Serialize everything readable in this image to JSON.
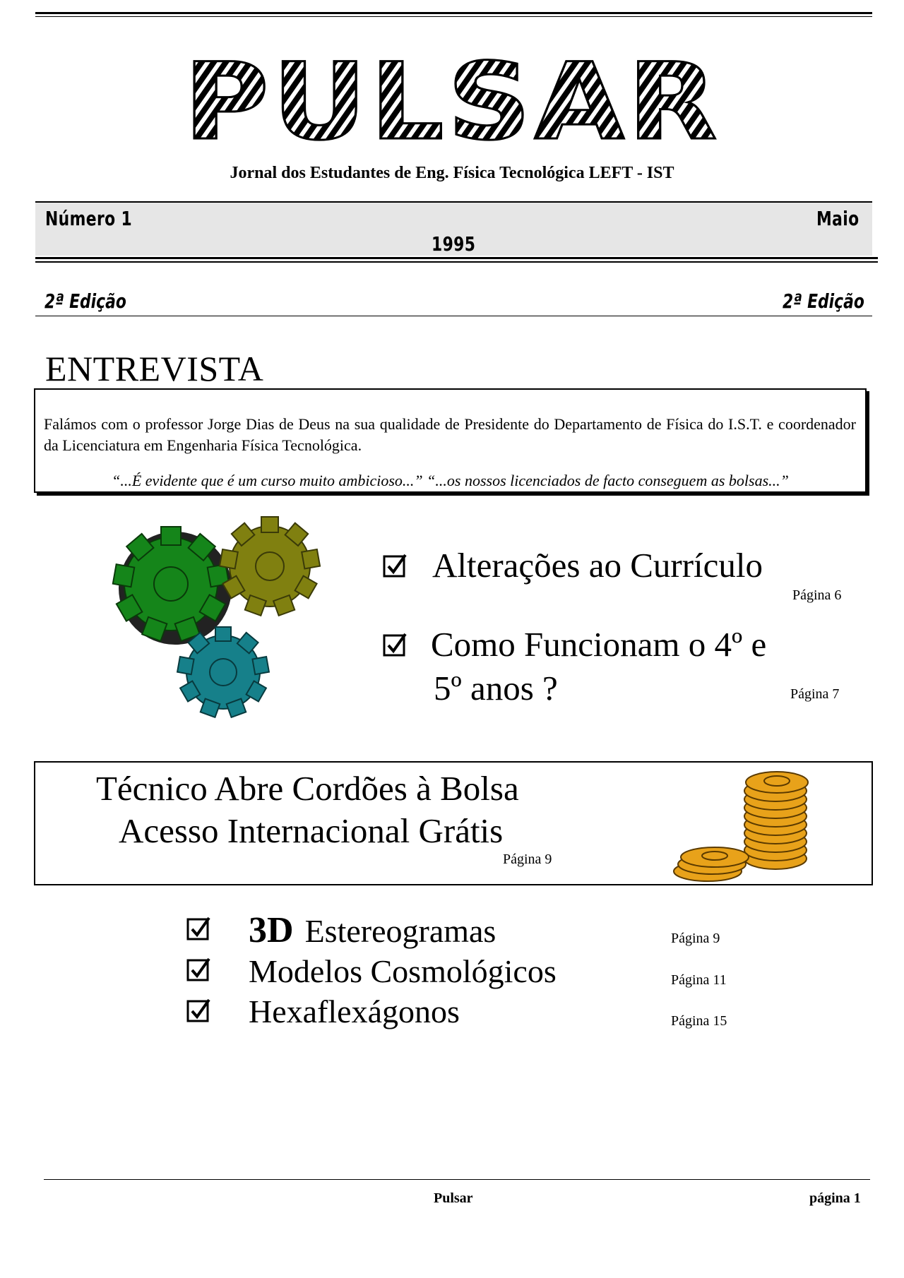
{
  "masthead": {
    "title": "PULSAR",
    "subtitle": "Jornal dos Estudantes de Eng. Física Tecnológica  LEFT - IST"
  },
  "issue": {
    "number": "Número 1",
    "month": "Maio",
    "year": "1995",
    "edition_left": "2ª Edição",
    "edition_right": "2ª Edição"
  },
  "interview": {
    "heading": "ENTREVISTA",
    "text": "Falámos com o professor Jorge Dias de Deus na sua qualidade de Presidente do Departamento de Física do I.S.T. e coordenador da Licenciatura em Engenharia Física Tecnológica.",
    "quote": "“...É evidente que é um curso muito ambicioso...” “...os nossos licenciados de facto conseguem as bolsas...”"
  },
  "gears": {
    "colors": [
      "#15851a",
      "#808010",
      "#16808a"
    ]
  },
  "featured": [
    {
      "line1": "Alterações ao Currículo",
      "line2": "",
      "page": "Página  6"
    },
    {
      "line1": "Como Funcionam o 4º e",
      "line2": "5º anos ?",
      "page": "Página  7"
    }
  ],
  "bolsa": {
    "line1": "Técnico Abre Cordões à Bolsa",
    "line2": "Acesso Internacional Grátis",
    "page": "Página  9",
    "coin_color": "#e8a21a"
  },
  "list": [
    {
      "bold": "3D",
      "label": "Estereogramas",
      "page": "Página  9"
    },
    {
      "bold": "",
      "label": "Modelos Cosmológicos",
      "page": "Página  11"
    },
    {
      "bold": "",
      "label": "Hexaflexágonos",
      "page": "Página  15"
    }
  ],
  "footer": {
    "center": "Pulsar",
    "right": "página 1"
  }
}
